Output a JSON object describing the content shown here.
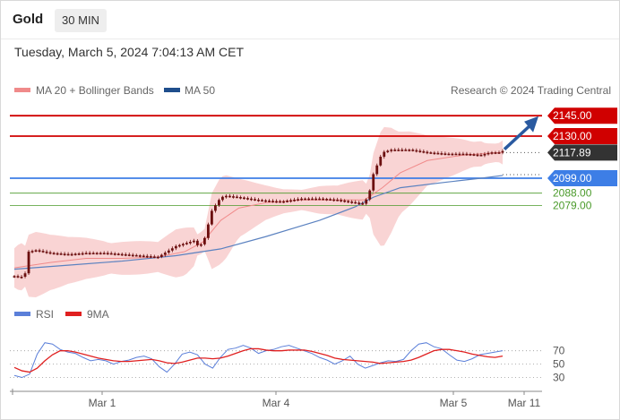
{
  "header": {
    "symbol": "Gold",
    "timeframe": "30 MIN",
    "datetime": "Tuesday, March 5, 2024 7:04:13 AM CET"
  },
  "legend": {
    "ma20": "MA 20 + Bollinger Bands",
    "ma50": "MA 50",
    "credit": "Research © 2024 Trading Central"
  },
  "colors": {
    "resistance": "#d00000",
    "support": "#3d7ee6",
    "minor_support": "#4a9a2a",
    "candle": "#6b0f0f",
    "bollinger": "#f7c5c5",
    "ma20": "#f08a8a",
    "ma50": "#5b82c0",
    "rsi": "#5b7fd9",
    "rsi_ma": "#e02020",
    "arrow": "#2a5aa0"
  },
  "chart_data": [
    {
      "type": "candlestick",
      "ylim": [
        2012,
        2157
      ],
      "price_now": 2117.89,
      "levels": [
        {
          "value": 2145.0,
          "label": "2145.00",
          "kind": "resistance"
        },
        {
          "value": 2130.0,
          "label": "2130.00",
          "kind": "resistance"
        },
        {
          "value": 2099.0,
          "label": "2099.00",
          "kind": "support"
        },
        {
          "value": 2088.0,
          "label": "2088.00",
          "kind": "minor_support"
        },
        {
          "value": 2079.0,
          "label": "2079.00",
          "kind": "minor_support"
        }
      ],
      "current_label": "2117.89",
      "price_path": [
        [
          0,
          2027
        ],
        [
          3,
          2026
        ],
        [
          5,
          2027
        ],
        [
          7,
          2031
        ],
        [
          8,
          2045
        ],
        [
          12,
          2046
        ],
        [
          20,
          2044
        ],
        [
          30,
          2043
        ],
        [
          40,
          2044
        ],
        [
          50,
          2044
        ],
        [
          60,
          2043
        ],
        [
          70,
          2042
        ],
        [
          80,
          2041
        ],
        [
          85,
          2045
        ],
        [
          90,
          2049
        ],
        [
          95,
          2051
        ],
        [
          100,
          2053
        ],
        [
          103,
          2048
        ],
        [
          106,
          2055
        ],
        [
          110,
          2075
        ],
        [
          115,
          2085
        ],
        [
          118,
          2086
        ],
        [
          125,
          2085
        ],
        [
          135,
          2083
        ],
        [
          145,
          2082
        ],
        [
          150,
          2082
        ],
        [
          160,
          2084
        ],
        [
          170,
          2084
        ],
        [
          180,
          2083
        ],
        [
          190,
          2081
        ],
        [
          195,
          2080
        ],
        [
          198,
          2090
        ],
        [
          200,
          2102
        ],
        [
          205,
          2118
        ],
        [
          210,
          2120
        ],
        [
          220,
          2120
        ],
        [
          230,
          2118
        ],
        [
          240,
          2117
        ],
        [
          250,
          2117
        ],
        [
          260,
          2116
        ],
        [
          265,
          2118
        ],
        [
          270,
          2118
        ],
        [
          272,
          2119
        ]
      ],
      "ma20_path": [
        [
          0,
          2033
        ],
        [
          20,
          2037
        ],
        [
          40,
          2040
        ],
        [
          60,
          2040
        ],
        [
          80,
          2041
        ],
        [
          95,
          2045
        ],
        [
          105,
          2052
        ],
        [
          115,
          2068
        ],
        [
          125,
          2077
        ],
        [
          140,
          2081
        ],
        [
          160,
          2083
        ],
        [
          180,
          2083
        ],
        [
          195,
          2083
        ],
        [
          205,
          2092
        ],
        [
          215,
          2103
        ],
        [
          230,
          2112
        ],
        [
          250,
          2116
        ],
        [
          272,
          2118
        ]
      ],
      "ma50_path": [
        [
          0,
          2032
        ],
        [
          30,
          2035
        ],
        [
          60,
          2038
        ],
        [
          90,
          2042
        ],
        [
          115,
          2047
        ],
        [
          140,
          2056
        ],
        [
          170,
          2068
        ],
        [
          190,
          2078
        ],
        [
          200,
          2085
        ],
        [
          215,
          2092
        ],
        [
          240,
          2096
        ],
        [
          260,
          2099
        ],
        [
          272,
          2101
        ]
      ],
      "projection": {
        "from": [
          272,
          2119
        ],
        "to": [
          290,
          2142
        ]
      }
    },
    {
      "type": "line",
      "series": [
        {
          "name": "RSI",
          "values": [
            33,
            30,
            35,
            65,
            82,
            80,
            72,
            68,
            66,
            60,
            55,
            57,
            55,
            50,
            54,
            56,
            60,
            62,
            58,
            46,
            38,
            50,
            65,
            68,
            64,
            50,
            44,
            60,
            72,
            74,
            78,
            74,
            66,
            70,
            72,
            76,
            78,
            74,
            70,
            66,
            60,
            56,
            50,
            55,
            62,
            50,
            44,
            48,
            52,
            55,
            54,
            57,
            70,
            80,
            82,
            76,
            73,
            64,
            56,
            54,
            58,
            64,
            66,
            68,
            70
          ]
        },
        {
          "name": "9MA",
          "values": [
            45,
            40,
            38,
            44,
            55,
            64,
            70,
            70,
            68,
            65,
            62,
            59,
            57,
            55,
            54,
            54,
            55,
            56,
            57,
            55,
            52,
            51,
            53,
            56,
            59,
            59,
            58,
            59,
            62,
            66,
            70,
            73,
            73,
            71,
            70,
            70,
            71,
            71,
            71,
            69,
            66,
            63,
            59,
            57,
            56,
            55,
            54,
            53,
            51,
            52,
            53,
            54,
            56,
            60,
            65,
            70,
            72,
            72,
            70,
            68,
            65,
            63,
            61,
            60,
            62
          ]
        }
      ],
      "y_ticks": [
        "70",
        "50",
        "30"
      ],
      "ylim": [
        20,
        95
      ]
    }
  ],
  "x_axis": {
    "ticks": [
      "Mar 1",
      "Mar 4",
      "Mar 5",
      "Mar 11"
    ]
  }
}
